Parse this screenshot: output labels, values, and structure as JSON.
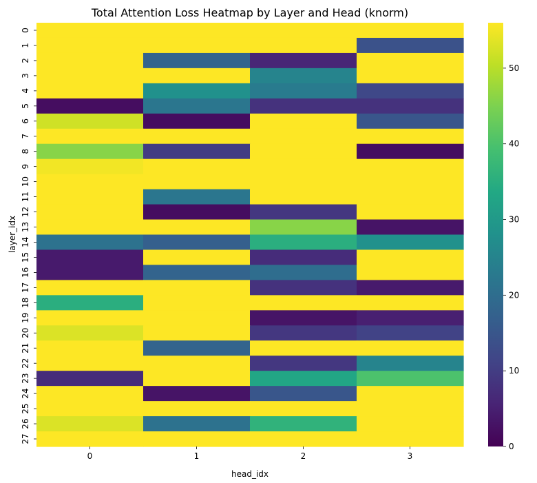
{
  "chart_data": {
    "type": "heatmap",
    "title": "Total Attention Loss Heatmap by Layer and Head (knorm)",
    "xlabel": "head_idx",
    "ylabel": "layer_idx",
    "x_categories": [
      "0",
      "1",
      "2",
      "3"
    ],
    "y_categories": [
      "0",
      "1",
      "2",
      "3",
      "4",
      "5",
      "6",
      "7",
      "8",
      "9",
      "10",
      "11",
      "12",
      "13",
      "14",
      "15",
      "16",
      "17",
      "18",
      "19",
      "20",
      "21",
      "22",
      "23",
      "24",
      "25",
      "26",
      "27"
    ],
    "colormap": "viridis",
    "zlim": [
      0,
      56
    ],
    "colorbar_ticks": [
      0,
      10,
      20,
      30,
      40,
      50
    ],
    "values": [
      [
        56,
        56,
        56,
        56
      ],
      [
        56,
        56,
        56,
        14
      ],
      [
        56,
        18,
        6,
        56
      ],
      [
        56,
        56,
        25,
        56
      ],
      [
        56,
        28,
        23,
        12
      ],
      [
        2,
        22,
        8,
        8
      ],
      [
        52,
        2,
        56,
        15
      ],
      [
        56,
        56,
        56,
        56
      ],
      [
        46,
        10,
        56,
        2
      ],
      [
        55,
        56,
        56,
        56
      ],
      [
        56,
        56,
        56,
        56
      ],
      [
        56,
        22,
        56,
        56
      ],
      [
        56,
        2,
        9,
        56
      ],
      [
        56,
        56,
        46,
        3
      ],
      [
        21,
        17,
        35,
        28
      ],
      [
        4,
        56,
        7,
        56
      ],
      [
        4,
        18,
        20,
        56
      ],
      [
        56,
        56,
        8,
        4
      ],
      [
        35,
        56,
        56,
        56
      ],
      [
        56,
        56,
        3,
        5
      ],
      [
        53,
        56,
        9,
        11
      ],
      [
        56,
        18,
        56,
        56
      ],
      [
        56,
        56,
        9,
        25
      ],
      [
        7,
        56,
        33,
        40
      ],
      [
        56,
        3,
        15,
        56
      ],
      [
        56,
        56,
        56,
        56
      ],
      [
        53,
        21,
        36,
        56
      ],
      [
        56,
        56,
        56,
        56
      ]
    ]
  }
}
